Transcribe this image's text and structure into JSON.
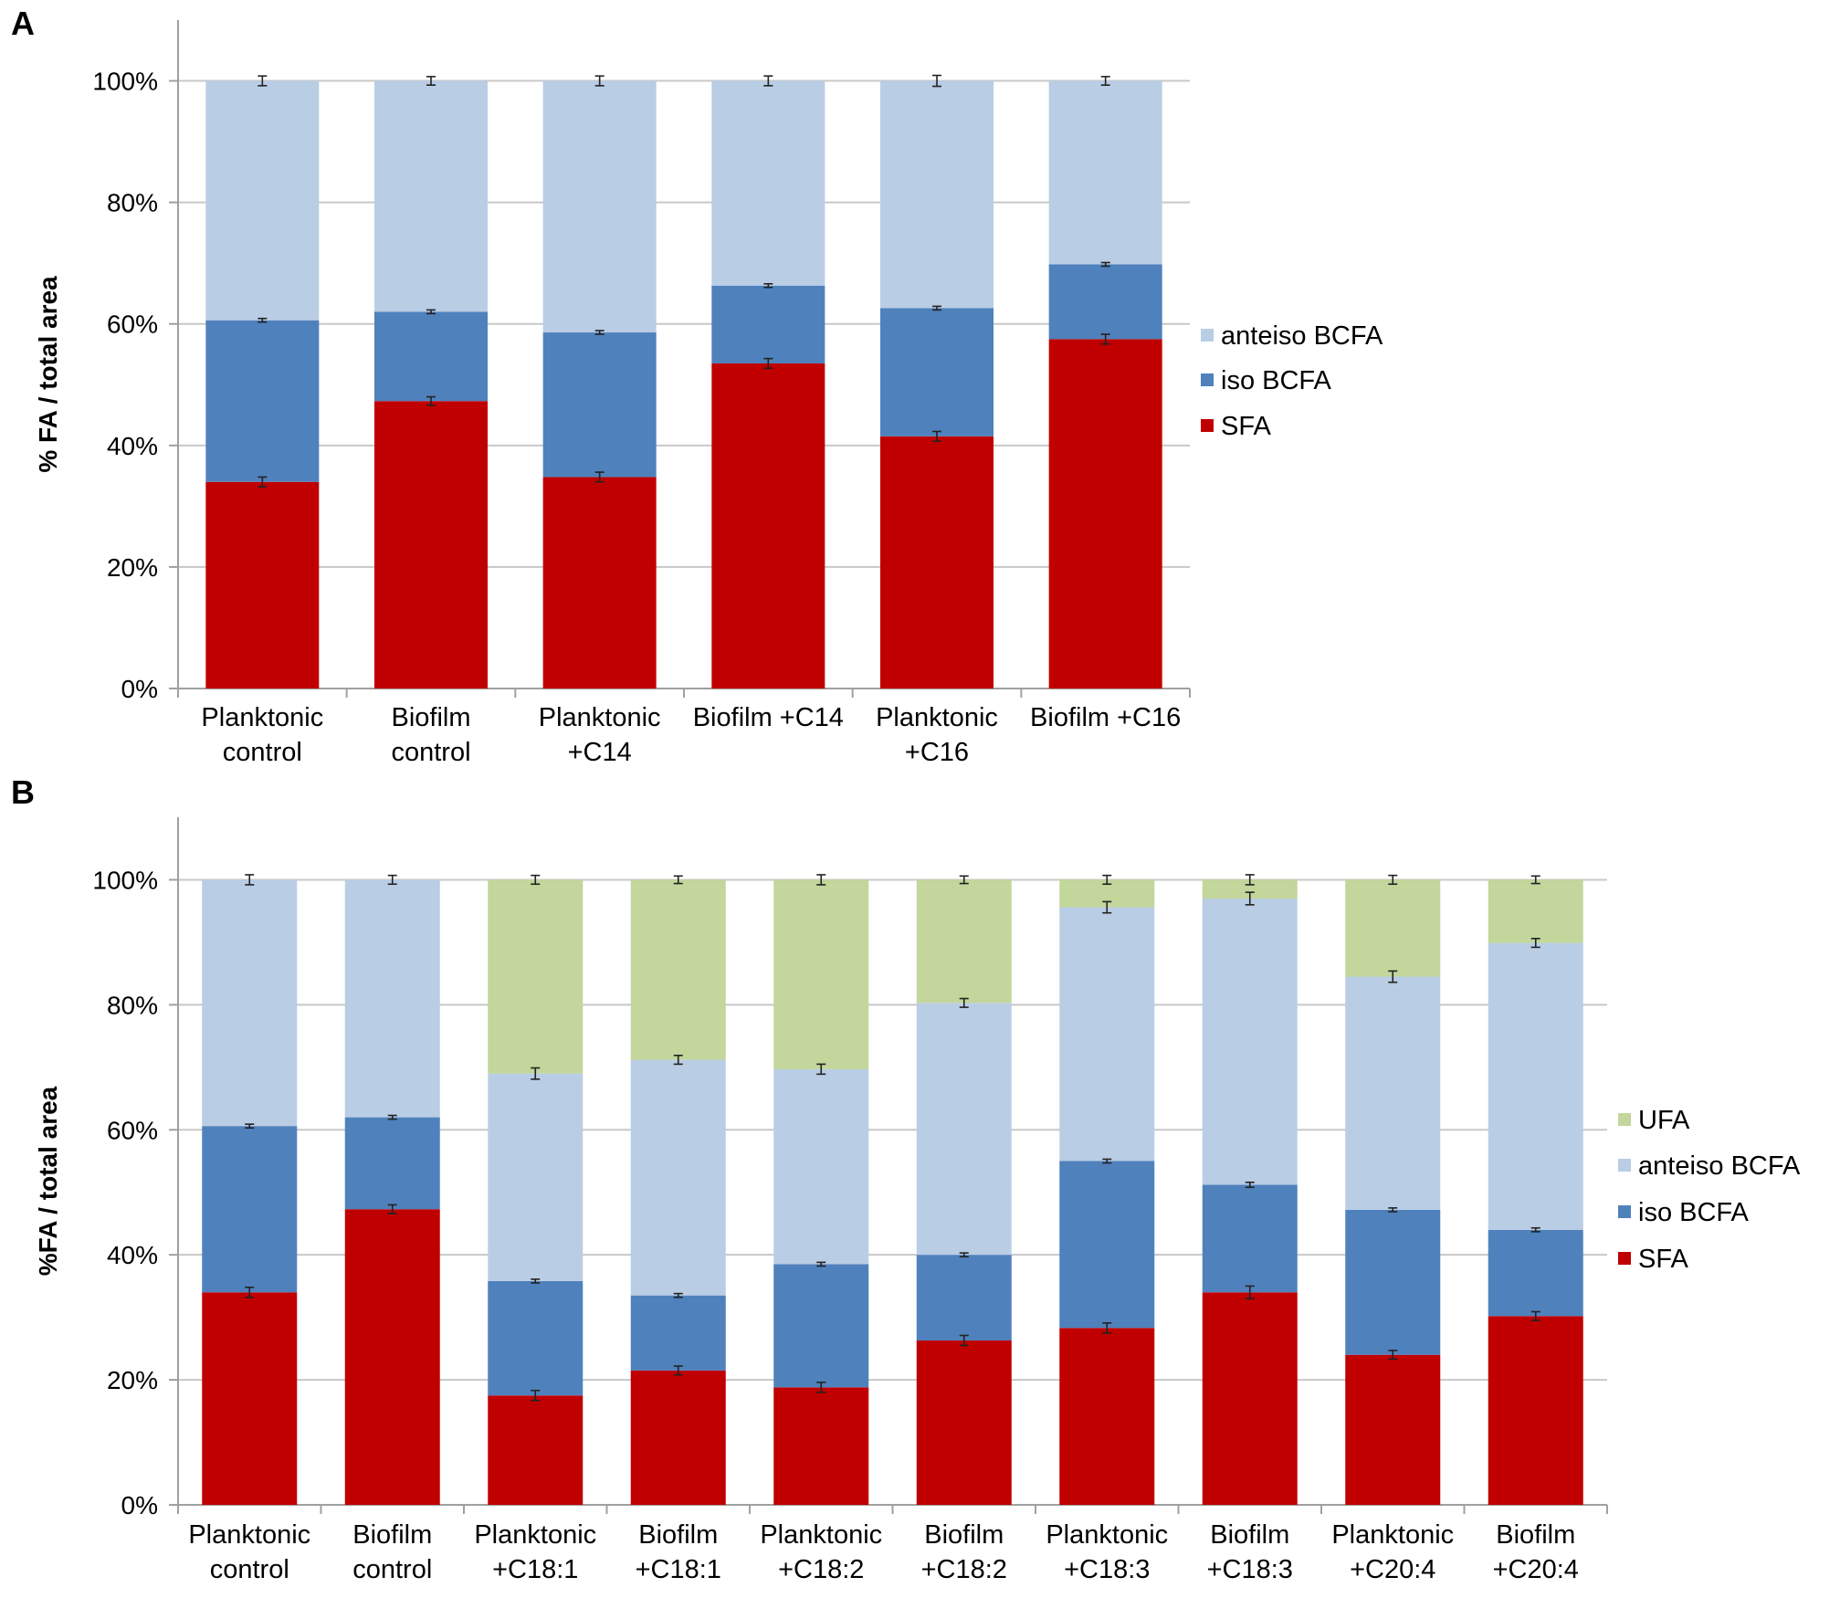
{
  "colors": {
    "SFA": "#c00000",
    "iso BCFA": "#4f81bd",
    "anteiso BCFA": "#b9cde5",
    "UFA": "#c3d69b",
    "grid": "#c8c8c8",
    "axis": "#a0a0a0"
  },
  "chart_data": [
    {
      "panel": "A",
      "type": "bar",
      "stacked": true,
      "ylabel": "% FA / total area",
      "yticks": [
        "0%",
        "20%",
        "40%",
        "60%",
        "80%",
        "100%"
      ],
      "ylim": [
        0,
        110
      ],
      "grid": true,
      "legend_position": "right",
      "legend": [
        "anteiso BCFA",
        "iso BCFA",
        "SFA"
      ],
      "categories": [
        [
          "Planktonic",
          "control"
        ],
        [
          "Biofilm",
          "control"
        ],
        [
          "Planktonic",
          "+C14"
        ],
        [
          "Biofilm +C14"
        ],
        [
          "Planktonic",
          "+C16"
        ],
        [
          "Biofilm +C16"
        ]
      ],
      "series": [
        {
          "name": "SFA",
          "values": [
            34,
            47.3,
            34.8,
            53.5,
            41.5,
            57.5
          ],
          "errors": [
            0.8,
            0.7,
            0.8,
            0.8,
            0.8,
            0.8
          ]
        },
        {
          "name": "iso BCFA",
          "values": [
            26.6,
            14.7,
            23.8,
            12.8,
            21.1,
            12.3
          ],
          "errors": [
            0.3,
            0.3,
            0.3,
            0.3,
            0.3,
            0.3
          ]
        },
        {
          "name": "anteiso BCFA",
          "values": [
            39.4,
            38,
            41.4,
            33.7,
            37.4,
            30.2
          ],
          "errors": [
            0.8,
            0.7,
            0.8,
            0.8,
            0.9,
            0.7
          ]
        }
      ]
    },
    {
      "panel": "B",
      "type": "bar",
      "stacked": true,
      "ylabel": "%FA / total area",
      "yticks": [
        "0%",
        "20%",
        "40%",
        "60%",
        "80%",
        "100%"
      ],
      "ylim": [
        0,
        110
      ],
      "grid": true,
      "legend_position": "right",
      "legend": [
        "UFA",
        "anteiso BCFA",
        "iso BCFA",
        "SFA"
      ],
      "categories": [
        [
          "Planktonic",
          "control"
        ],
        [
          "Biofilm",
          "control"
        ],
        [
          "Planktonic",
          "+C18:1"
        ],
        [
          "Biofilm",
          "+C18:1"
        ],
        [
          "Planktonic",
          "+C18:2"
        ],
        [
          "Biofilm",
          "+C18:2"
        ],
        [
          "Planktonic",
          "+C18:3"
        ],
        [
          "Biofilm",
          "+C18:3"
        ],
        [
          "Planktonic",
          "+C20:4"
        ],
        [
          "Biofilm",
          "+C20:4"
        ]
      ],
      "series": [
        {
          "name": "SFA",
          "values": [
            34,
            47.3,
            17.5,
            21.5,
            18.8,
            26.3,
            28.3,
            34,
            24,
            30.2
          ],
          "errors": [
            0.8,
            0.7,
            0.8,
            0.7,
            0.8,
            0.8,
            0.8,
            1.0,
            0.7,
            0.7
          ]
        },
        {
          "name": "iso BCFA",
          "values": [
            26.6,
            14.7,
            18.3,
            12,
            19.7,
            13.7,
            26.7,
            17.2,
            23.2,
            13.8
          ],
          "errors": [
            0.3,
            0.3,
            0.3,
            0.3,
            0.3,
            0.3,
            0.3,
            0.4,
            0.3,
            0.3
          ]
        },
        {
          "name": "anteiso BCFA",
          "values": [
            39.4,
            38,
            33.2,
            37.7,
            31.2,
            40.3,
            40.6,
            45.8,
            37.3,
            45.9
          ],
          "errors": [
            0.8,
            0.7,
            0.9,
            0.7,
            0.8,
            0.7,
            0.9,
            1.0,
            0.9,
            0.7
          ]
        },
        {
          "name": "UFA",
          "values": [
            0,
            0,
            31,
            28.8,
            30.3,
            19.7,
            4.4,
            3,
            15.5,
            10.1
          ],
          "errors": [
            0,
            0,
            0.7,
            0.6,
            0.8,
            0.6,
            0.7,
            0.8,
            0.7,
            0.6
          ]
        }
      ]
    }
  ]
}
